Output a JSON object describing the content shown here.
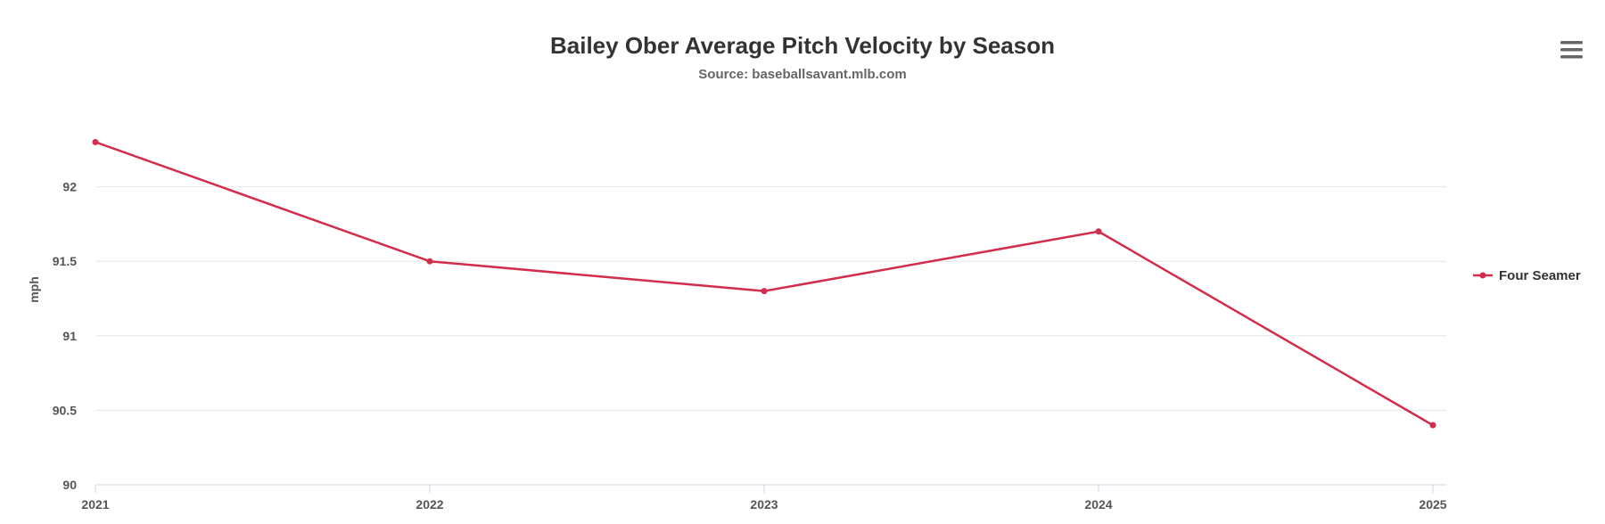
{
  "chart_data": {
    "type": "line",
    "title": "Bailey Ober Average Pitch Velocity by Season",
    "subtitle": "Source: baseballsavant.mlb.com",
    "xlabel": "",
    "ylabel": "mph",
    "categories": [
      "2021",
      "2022",
      "2023",
      "2024",
      "2025"
    ],
    "series": [
      {
        "name": "Four Seamer",
        "color": "#d22d4c",
        "values": [
          92.3,
          91.5,
          91.3,
          91.7,
          90.4
        ]
      }
    ],
    "ylim": [
      90,
      92.5
    ],
    "yticks": [
      "90",
      "90.5",
      "91",
      "91.5",
      "92"
    ],
    "grid": true,
    "legend_position": "right"
  },
  "menu": {
    "icon": "hamburger-menu-icon"
  }
}
